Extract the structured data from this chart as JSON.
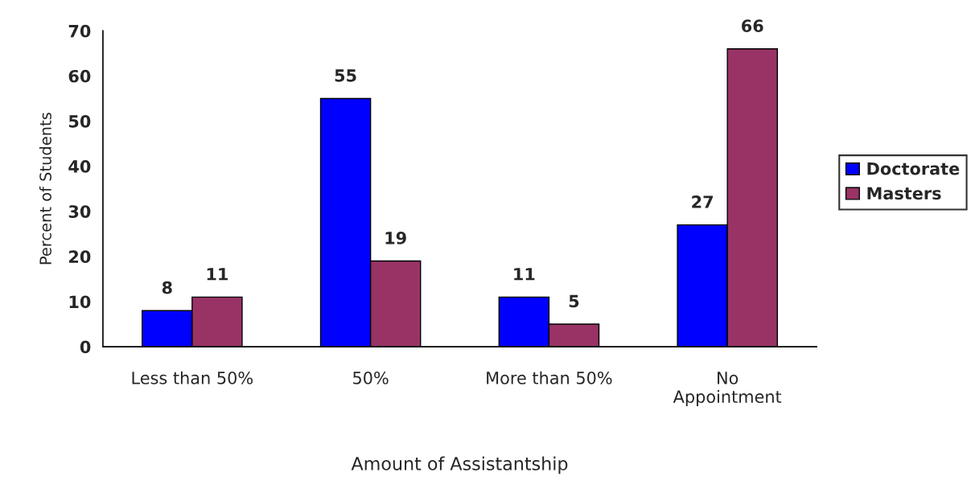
{
  "chart_data": {
    "type": "bar",
    "xlabel": "Amount of Assistantship",
    "ylabel": "Percent of Students",
    "categories": [
      "Less than 50%",
      "50%",
      "More than 50%",
      "No\nAppointment"
    ],
    "series": [
      {
        "name": "Doctorate",
        "color": "#0000ff",
        "values": [
          8,
          55,
          11,
          27
        ]
      },
      {
        "name": "Masters",
        "color": "#993366",
        "values": [
          11,
          19,
          5,
          66
        ]
      }
    ],
    "ylim": [
      0,
      70
    ],
    "yticks": [
      0,
      10,
      20,
      30,
      40,
      50,
      60,
      70
    ],
    "data_labels": true,
    "legend": "right",
    "grid": false
  }
}
